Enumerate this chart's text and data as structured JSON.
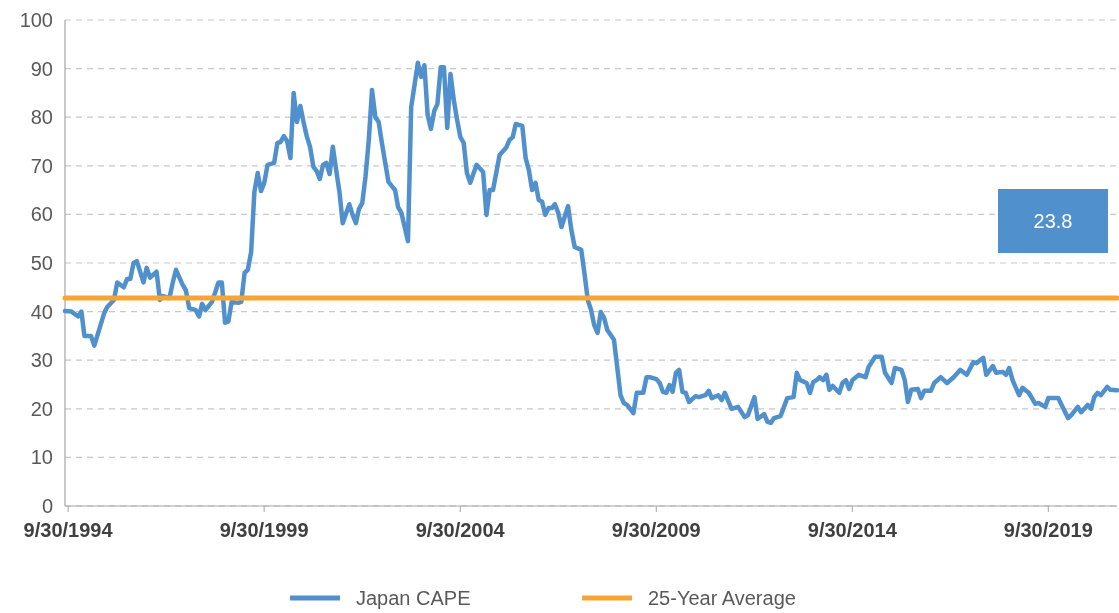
{
  "chart_data": {
    "type": "line",
    "xlim": [
      "1994-09",
      "2021-07"
    ],
    "xticks": [
      {
        "value": "1994-09-30",
        "label": "9/30/1994"
      },
      {
        "value": "1999-09-30",
        "label": "9/30/1999"
      },
      {
        "value": "2004-09-30",
        "label": "9/30/2004"
      },
      {
        "value": "2009-09-30",
        "label": "9/30/2009"
      },
      {
        "value": "2014-09-30",
        "label": "9/30/2014"
      },
      {
        "value": "2019-09-30",
        "label": "9/30/2019"
      }
    ],
    "ylim": [
      0,
      100
    ],
    "yticks": [
      0,
      10,
      20,
      30,
      40,
      50,
      60,
      70,
      80,
      90,
      100
    ],
    "grid": "y",
    "legend": "bottom",
    "line_style": "solid",
    "marker": "none",
    "annotations": [
      "23.8"
    ],
    "series": [
      {
        "name": "Japan CAPE",
        "color": "#5090cd",
        "x": [
          "1994-09",
          "1994-11",
          "1995-01",
          "1995-02",
          "1995-03",
          "1995-05",
          "1995-06",
          "1995-09",
          "1995-10",
          "1995-12",
          "1996-01",
          "1996-03",
          "1996-04",
          "1996-05",
          "1996-06",
          "1996-07",
          "1996-09",
          "1996-10",
          "1996-11",
          "1997-01",
          "1997-02",
          "1997-03",
          "1997-05",
          "1997-06",
          "1997-07",
          "1997-09",
          "1997-10",
          "1997-11",
          "1998-01",
          "1998-02",
          "1998-03",
          "1998-04",
          "1998-06",
          "1998-08",
          "1998-09",
          "1998-10",
          "1998-11",
          "1998-12",
          "1999-02",
          "1999-03",
          "1999-04",
          "1999-05",
          "1999-06",
          "1999-07",
          "1999-08",
          "1999-09",
          "1999-10",
          "1999-11",
          "2000-01",
          "2000-02",
          "2000-03",
          "2000-04",
          "2000-05",
          "2000-06",
          "2000-07",
          "2000-08",
          "2000-09",
          "2000-10",
          "2000-11",
          "2000-12",
          "2001-01",
          "2001-02",
          "2001-03",
          "2001-04",
          "2001-05",
          "2001-06",
          "2001-07",
          "2001-08",
          "2001-09",
          "2001-10",
          "2001-12",
          "2002-01",
          "2002-02",
          "2002-03",
          "2002-04",
          "2002-05",
          "2002-06",
          "2002-07",
          "2002-08",
          "2002-09",
          "2002-10",
          "2002-11",
          "2002-12",
          "2003-02",
          "2003-03",
          "2003-04",
          "2003-06",
          "2003-07",
          "2003-08",
          "2003-09",
          "2003-10",
          "2003-11",
          "2003-12",
          "2004-01",
          "2004-02",
          "2004-03",
          "2004-04",
          "2004-05",
          "2004-06",
          "2004-07",
          "2004-08",
          "2004-09",
          "2004-10",
          "2004-11",
          "2004-12",
          "2005-01",
          "2005-03",
          "2005-05",
          "2005-06",
          "2005-07",
          "2005-08",
          "2005-10",
          "2005-12",
          "2006-01",
          "2006-02",
          "2006-03",
          "2006-05",
          "2006-06",
          "2006-07",
          "2006-08",
          "2006-09",
          "2006-10",
          "2006-11",
          "2006-12",
          "2007-01",
          "2007-02",
          "2007-03",
          "2007-04",
          "2007-05",
          "2007-07",
          "2007-08",
          "2007-09",
          "2007-11",
          "2007-12",
          "2008-01",
          "2008-02",
          "2008-03",
          "2008-04",
          "2008-05",
          "2008-06",
          "2008-07",
          "2008-09",
          "2008-10",
          "2008-11",
          "2008-12",
          "2009-01",
          "2009-03",
          "2009-04",
          "2009-06",
          "2009-07",
          "2009-08",
          "2009-10",
          "2009-11",
          "2009-12",
          "2010-01",
          "2010-02",
          "2010-03",
          "2010-04",
          "2010-05",
          "2010-06",
          "2010-07",
          "2010-08",
          "2010-10",
          "2010-11",
          "2011-01",
          "2011-02",
          "2011-03",
          "2011-05",
          "2011-06",
          "2011-07",
          "2011-09",
          "2011-11",
          "2012-01",
          "2012-02",
          "2012-04",
          "2012-05",
          "2012-07",
          "2012-08",
          "2012-09",
          "2012-10",
          "2012-12",
          "2013-02",
          "2013-04",
          "2013-05",
          "2013-06",
          "2013-08",
          "2013-09",
          "2013-10",
          "2013-11",
          "2013-12",
          "2014-01",
          "2014-02",
          "2014-03",
          "2014-04",
          "2014-06",
          "2014-07",
          "2014-08",
          "2014-09",
          "2014-10",
          "2014-12",
          "2015-02",
          "2015-03",
          "2015-05",
          "2015-07",
          "2015-08",
          "2015-10",
          "2015-11",
          "2016-01",
          "2016-02",
          "2016-03",
          "2016-04",
          "2016-06",
          "2016-07",
          "2016-08",
          "2016-10",
          "2016-11",
          "2017-01",
          "2017-03",
          "2017-05",
          "2017-07",
          "2017-09",
          "2017-11",
          "2017-12",
          "2018-02",
          "2018-03",
          "2018-05",
          "2018-06",
          "2018-08",
          "2018-09",
          "2018-10",
          "2018-11",
          "2019-01",
          "2019-02",
          "2019-04",
          "2019-06",
          "2019-07",
          "2019-09",
          "2019-10",
          "2020-01",
          "2020-02",
          "2020-04",
          "2020-05",
          "2020-07",
          "2020-08",
          "2020-10",
          "2020-11",
          "2020-12",
          "2021-01",
          "2021-02",
          "2021-04",
          "2021-05",
          "2021-07"
        ],
        "values": [
          40.1,
          40,
          39,
          40,
          35,
          35,
          33,
          39.7,
          41,
          42.4,
          46,
          45,
          46.7,
          46.7,
          50,
          50.4,
          46,
          49,
          47,
          48.2,
          42.4,
          43.2,
          42.8,
          46,
          48.6,
          45.5,
          44.4,
          40.7,
          40.3,
          39,
          41.6,
          40.3,
          42,
          46,
          46,
          37.7,
          38,
          42,
          41.8,
          42,
          48,
          48.6,
          52.3,
          64.6,
          68.5,
          64.8,
          66.5,
          70.2,
          70.6,
          74.7,
          74.9,
          76.1,
          75.1,
          71.6,
          85,
          79,
          82.3,
          79,
          76,
          73.9,
          69.8,
          68.9,
          67.3,
          70.2,
          70.6,
          68.3,
          73.9,
          69.1,
          64.6,
          58.2,
          62.1,
          59.9,
          58.2,
          61.1,
          62.3,
          67.7,
          75.3,
          85.6,
          80,
          79,
          74.7,
          70.6,
          66.7,
          65,
          61.5,
          60.3,
          54.5,
          82.1,
          86.6,
          91.2,
          88.3,
          90.7,
          80.5,
          77.6,
          81.3,
          82.7,
          90.3,
          90.3,
          77.8,
          88.9,
          83.5,
          79.4,
          75.9,
          74.7,
          68.5,
          66.5,
          70.2,
          68.7,
          59.9,
          65,
          65,
          72.2,
          73.7,
          75.3,
          75.9,
          78.6,
          78.2,
          71.6,
          69.1,
          65,
          66.5,
          63,
          62.6,
          59.9,
          61.3,
          61.3,
          62.1,
          60.3,
          57.4,
          61.7,
          56.8,
          53.3,
          52.7,
          47.9,
          42.4,
          40.3,
          37.2,
          35.6,
          39.9,
          38.7,
          36.2,
          34.2,
          28.6,
          22.8,
          21.2,
          20.8,
          19.1,
          23.3,
          23.3,
          26.5,
          26.5,
          26.1,
          25.3,
          23.5,
          23.3,
          24.9,
          23.5,
          27.4,
          28,
          23.5,
          23.3,
          21.4,
          22.6,
          22.4,
          22.8,
          23.7,
          22.2,
          22.8,
          21.8,
          23.3,
          20,
          20.4,
          18.3,
          18.7,
          22.4,
          17.9,
          18.9,
          17.3,
          17.1,
          18.1,
          18.5,
          22.2,
          22.4,
          27.4,
          25.9,
          25.3,
          23.3,
          25.5,
          25.9,
          26.5,
          25.9,
          27,
          23.9,
          24.7,
          23.3,
          25.3,
          25.9,
          24.1,
          25.9,
          27,
          26.5,
          28.6,
          30.7,
          30.7,
          27.4,
          25.3,
          28.4,
          28,
          25.9,
          21.4,
          23.9,
          24.1,
          22.2,
          23.7,
          23.7,
          25.3,
          26.5,
          25.3,
          26.5,
          28,
          27,
          29.6,
          29.4,
          30.5,
          27,
          28.8,
          27.4,
          27.6,
          27,
          28.4,
          25.9,
          22.8,
          24.3,
          23.3,
          21,
          21.2,
          20.4,
          22.2,
          22.2,
          20.8,
          18.1,
          18.7,
          20.4,
          19.3,
          20.8,
          20,
          22.4,
          23.3,
          22.8,
          24.5,
          23.9,
          23.8
        ]
      },
      {
        "name": "25-Year Average",
        "color": "#f6a533",
        "x": [
          "1994-09",
          "2021-07"
        ],
        "values": [
          42.8,
          42.8
        ]
      }
    ]
  }
}
